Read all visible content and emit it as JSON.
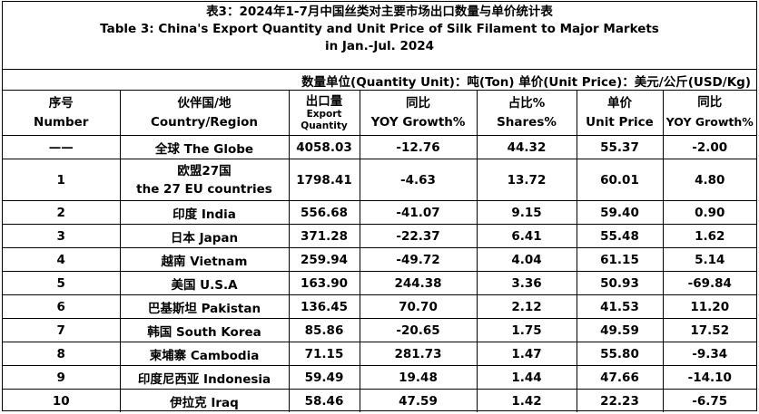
{
  "title": {
    "cn": "表3：2024年1-7月中国丝类对主要市场出口数量与单价统计表",
    "en_line1": "Table 3: China's Export Quantity and Unit Price of Silk Filament to Major Markets",
    "en_line2": "in Jan.-Jul. 2024"
  },
  "units": "数量单位(Quantity Unit)：吨(Ton)  单价(Unit Price)：美元/公斤(USD/Kg)",
  "headers": [
    {
      "cn": "序号",
      "en": "Number"
    },
    {
      "cn": "伙伴国/地",
      "en": "Country/Region"
    },
    {
      "cn": "出口量",
      "en": "Export Quantity"
    },
    {
      "cn": "同比",
      "en": "YOY Growth%"
    },
    {
      "cn": "占比%",
      "en": "Shares%"
    },
    {
      "cn": "单价",
      "en": "Unit Price"
    },
    {
      "cn": "同比",
      "en": "YOY Growth%"
    }
  ],
  "rows": [
    {
      "no": "——",
      "country": "全球 The Globe",
      "qty": "4058.03",
      "qty_yoy": "-12.76",
      "share": "44.32",
      "price": "55.37",
      "price_yoy": "-2.00"
    },
    {
      "no": "1",
      "country": "欧盟27国",
      "country2": "the 27 EU countries",
      "qty": "1798.41",
      "qty_yoy": "-4.63",
      "share": "13.72",
      "price": "60.01",
      "price_yoy": "4.80"
    },
    {
      "no": "2",
      "country": "印度 India",
      "qty": "556.68",
      "qty_yoy": "-41.07",
      "share": "9.15",
      "price": "59.40",
      "price_yoy": "0.90"
    },
    {
      "no": "3",
      "country": "日本 Japan",
      "qty": "371.28",
      "qty_yoy": "-22.37",
      "share": "6.41",
      "price": "55.48",
      "price_yoy": "1.62"
    },
    {
      "no": "4",
      "country": "越南 Vietnam",
      "qty": "259.94",
      "qty_yoy": "-49.72",
      "share": "4.04",
      "price": "61.15",
      "price_yoy": "5.14"
    },
    {
      "no": "5",
      "country": "美国 U.S.A",
      "qty": "163.90",
      "qty_yoy": "244.38",
      "share": "3.36",
      "price": "50.93",
      "price_yoy": "-69.84"
    },
    {
      "no": "6",
      "country": "巴基斯坦 Pakistan",
      "qty": "136.45",
      "qty_yoy": "70.70",
      "share": "2.12",
      "price": "41.53",
      "price_yoy": "11.20"
    },
    {
      "no": "7",
      "country": "韩国 South Korea",
      "qty": "85.86",
      "qty_yoy": "-20.65",
      "share": "1.75",
      "price": "49.59",
      "price_yoy": "17.52"
    },
    {
      "no": "8",
      "country": "柬埔寨 Cambodia",
      "qty": "71.15",
      "qty_yoy": "281.73",
      "share": "1.47",
      "price": "55.80",
      "price_yoy": "-9.34"
    },
    {
      "no": "9",
      "country": "印度尼西亚 Indonesia",
      "qty": "59.49",
      "qty_yoy": "19.48",
      "share": "1.44",
      "price": "47.66",
      "price_yoy": "-14.10"
    },
    {
      "no": "10",
      "country": "伊拉克 Iraq",
      "qty": "58.46",
      "qty_yoy": "47.59",
      "share": "1.42",
      "price": "22.23",
      "price_yoy": "-6.75"
    }
  ]
}
